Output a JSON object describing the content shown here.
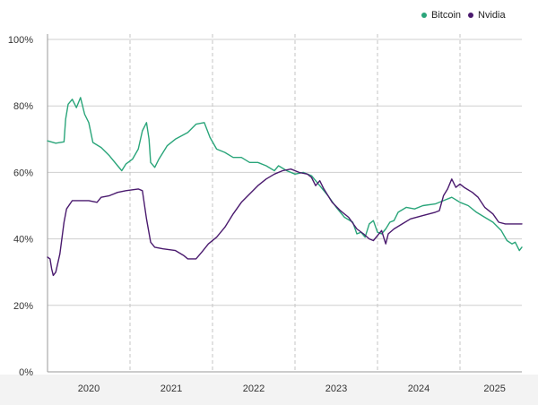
{
  "chart_data": {
    "type": "line",
    "title": "",
    "xlabel": "",
    "ylabel": "",
    "ylim": [
      0,
      100
    ],
    "xlim": [
      2019.75,
      2025.5
    ],
    "y_ticks": [
      0,
      20,
      40,
      60,
      80,
      100
    ],
    "y_tick_labels": [
      "0%",
      "20%",
      "40%",
      "60%",
      "80%",
      "100%"
    ],
    "x_tick_labels": [
      {
        "label": "2020",
        "x": 2020.25
      },
      {
        "label": "2021",
        "x": 2021.25
      },
      {
        "label": "2022",
        "x": 2022.25
      },
      {
        "label": "2023",
        "x": 2023.25
      },
      {
        "label": "2024",
        "x": 2024.25
      },
      {
        "label": "2025",
        "x": 2025.17
      }
    ],
    "x_gridlines": [
      2020.75,
      2021.75,
      2022.75,
      2023.75,
      2024.75
    ],
    "grid": true,
    "legend": "top-right",
    "series": [
      {
        "name": "Bitcoin",
        "color": "#2aa57a",
        "points": [
          [
            2019.75,
            69.5
          ],
          [
            2019.85,
            68.8
          ],
          [
            2019.95,
            69.2
          ],
          [
            2019.97,
            76
          ],
          [
            2020.0,
            80.5
          ],
          [
            2020.05,
            82
          ],
          [
            2020.1,
            79.5
          ],
          [
            2020.15,
            82.5
          ],
          [
            2020.2,
            77.5
          ],
          [
            2020.25,
            75
          ],
          [
            2020.3,
            69
          ],
          [
            2020.4,
            67.5
          ],
          [
            2020.5,
            65
          ],
          [
            2020.6,
            62
          ],
          [
            2020.65,
            60.5
          ],
          [
            2020.7,
            62.5
          ],
          [
            2020.78,
            64
          ],
          [
            2020.85,
            67
          ],
          [
            2020.9,
            72.5
          ],
          [
            2020.95,
            75
          ],
          [
            2020.98,
            70
          ],
          [
            2021.0,
            63
          ],
          [
            2021.05,
            61.5
          ],
          [
            2021.1,
            64
          ],
          [
            2021.2,
            68
          ],
          [
            2021.3,
            70
          ],
          [
            2021.45,
            72
          ],
          [
            2021.55,
            74.5
          ],
          [
            2021.65,
            75
          ],
          [
            2021.72,
            70.5
          ],
          [
            2021.8,
            67
          ],
          [
            2021.9,
            66
          ],
          [
            2022.0,
            64.5
          ],
          [
            2022.1,
            64.5
          ],
          [
            2022.2,
            63
          ],
          [
            2022.3,
            63
          ],
          [
            2022.4,
            62
          ],
          [
            2022.5,
            60.5
          ],
          [
            2022.55,
            62
          ],
          [
            2022.65,
            60.5
          ],
          [
            2022.75,
            59.5
          ],
          [
            2022.85,
            60
          ],
          [
            2022.95,
            59
          ],
          [
            2023.05,
            56
          ],
          [
            2023.15,
            53
          ],
          [
            2023.25,
            49.5
          ],
          [
            2023.35,
            46.5
          ],
          [
            2023.45,
            45
          ],
          [
            2023.5,
            41.5
          ],
          [
            2023.55,
            42
          ],
          [
            2023.6,
            40.5
          ],
          [
            2023.65,
            44.5
          ],
          [
            2023.7,
            45.5
          ],
          [
            2023.75,
            42
          ],
          [
            2023.8,
            41.5
          ],
          [
            2023.85,
            43
          ],
          [
            2023.9,
            45
          ],
          [
            2023.95,
            45.5
          ],
          [
            2024.0,
            48
          ],
          [
            2024.1,
            49.5
          ],
          [
            2024.2,
            49
          ],
          [
            2024.3,
            50
          ],
          [
            2024.45,
            50.5
          ],
          [
            2024.55,
            51.5
          ],
          [
            2024.65,
            52.5
          ],
          [
            2024.75,
            51
          ],
          [
            2024.85,
            50
          ],
          [
            2024.95,
            48
          ],
          [
            2025.05,
            46.5
          ],
          [
            2025.15,
            45
          ],
          [
            2025.25,
            42.5
          ],
          [
            2025.32,
            39.5
          ],
          [
            2025.38,
            38.5
          ],
          [
            2025.42,
            39
          ],
          [
            2025.47,
            36.5
          ],
          [
            2025.5,
            37.5
          ]
        ]
      },
      {
        "name": "Nvidia",
        "color": "#4a1a6e",
        "points": [
          [
            2019.75,
            34.5
          ],
          [
            2019.78,
            34
          ],
          [
            2019.8,
            31
          ],
          [
            2019.82,
            29
          ],
          [
            2019.85,
            30
          ],
          [
            2019.9,
            35.5
          ],
          [
            2019.95,
            45
          ],
          [
            2019.98,
            49
          ],
          [
            2020.05,
            51.5
          ],
          [
            2020.15,
            51.5
          ],
          [
            2020.25,
            51.5
          ],
          [
            2020.35,
            51
          ],
          [
            2020.4,
            52.5
          ],
          [
            2020.5,
            53
          ],
          [
            2020.6,
            54
          ],
          [
            2020.7,
            54.5
          ],
          [
            2020.85,
            55
          ],
          [
            2020.9,
            54.5
          ],
          [
            2020.95,
            46
          ],
          [
            2021.0,
            39
          ],
          [
            2021.05,
            37.5
          ],
          [
            2021.15,
            37
          ],
          [
            2021.3,
            36.5
          ],
          [
            2021.4,
            35
          ],
          [
            2021.45,
            34
          ],
          [
            2021.55,
            34
          ],
          [
            2021.62,
            36
          ],
          [
            2021.7,
            38.5
          ],
          [
            2021.8,
            40.5
          ],
          [
            2021.9,
            43.5
          ],
          [
            2022.0,
            47.5
          ],
          [
            2022.1,
            51
          ],
          [
            2022.2,
            53.5
          ],
          [
            2022.3,
            56
          ],
          [
            2022.4,
            58
          ],
          [
            2022.5,
            59.5
          ],
          [
            2022.6,
            60.5
          ],
          [
            2022.7,
            61
          ],
          [
            2022.8,
            60
          ],
          [
            2022.9,
            59.5
          ],
          [
            2022.95,
            58.5
          ],
          [
            2023.0,
            56
          ],
          [
            2023.05,
            57.5
          ],
          [
            2023.1,
            55
          ],
          [
            2023.2,
            51
          ],
          [
            2023.3,
            48.5
          ],
          [
            2023.4,
            46.5
          ],
          [
            2023.5,
            43
          ],
          [
            2023.58,
            41.5
          ],
          [
            2023.65,
            40
          ],
          [
            2023.7,
            39.5
          ],
          [
            2023.75,
            41
          ],
          [
            2023.8,
            42.5
          ],
          [
            2023.83,
            40
          ],
          [
            2023.85,
            38.5
          ],
          [
            2023.88,
            41.5
          ],
          [
            2023.95,
            43
          ],
          [
            2024.05,
            44.5
          ],
          [
            2024.15,
            46
          ],
          [
            2024.3,
            47
          ],
          [
            2024.45,
            48
          ],
          [
            2024.5,
            48.5
          ],
          [
            2024.55,
            53
          ],
          [
            2024.6,
            55
          ],
          [
            2024.65,
            58
          ],
          [
            2024.7,
            55.5
          ],
          [
            2024.75,
            56.5
          ],
          [
            2024.8,
            55.5
          ],
          [
            2024.9,
            54
          ],
          [
            2024.97,
            52.5
          ],
          [
            2025.05,
            49.5
          ],
          [
            2025.15,
            47.5
          ],
          [
            2025.22,
            45
          ],
          [
            2025.3,
            44.5
          ],
          [
            2025.4,
            44.5
          ],
          [
            2025.5,
            44.5
          ]
        ]
      }
    ]
  }
}
